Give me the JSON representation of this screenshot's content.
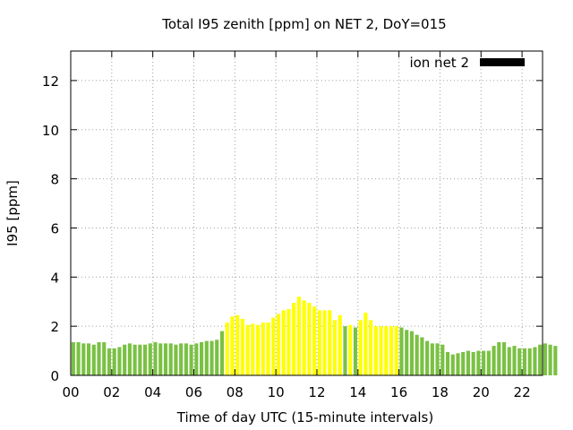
{
  "chart_data": {
    "type": "bar",
    "title": "Total I95 zenith [ppm] on NET 2, DoY=015",
    "xlabel": "Time of day UTC (15-minute intervals)",
    "ylabel": "I95 [ppm]",
    "xlim": [
      0,
      23
    ],
    "ylim": [
      0,
      13.2
    ],
    "x_bin_width_hours": 0.25,
    "grid": true,
    "grid_style": "dotted",
    "legend_position": "top-right",
    "legend": [
      {
        "label": "ion net 2",
        "color": "#000000"
      }
    ],
    "x_ticks": [
      0,
      2,
      4,
      6,
      8,
      10,
      12,
      14,
      16,
      18,
      20,
      22
    ],
    "x_tick_labels": [
      "00",
      "02",
      "04",
      "06",
      "08",
      "10",
      "12",
      "14",
      "16",
      "18",
      "20",
      "22"
    ],
    "y_ticks": [
      0,
      2,
      4,
      6,
      8,
      10,
      12
    ],
    "y_tick_labels": [
      "0",
      "2",
      "4",
      "6",
      "8",
      "10",
      "12"
    ],
    "colors": {
      "green": "#7ac143",
      "yellow": "#ffff00",
      "axis": "#000000",
      "grid": "#a0a0a0"
    },
    "series": [
      {
        "start_hour": 0,
        "values": [
          1.35,
          1.35,
          1.3,
          1.3,
          1.25,
          1.35,
          1.35,
          1.1,
          1.1,
          1.15,
          1.25,
          1.3,
          1.25,
          1.25,
          1.25,
          1.3,
          1.35,
          1.3,
          1.3,
          1.3,
          1.25,
          1.3,
          1.3,
          1.25,
          1.3,
          1.35,
          1.4,
          1.4,
          1.45,
          1.8,
          2.15,
          2.4,
          2.45,
          2.3,
          2.05,
          2.1,
          2.05,
          2.15,
          2.15,
          2.35,
          2.5,
          2.65,
          2.7,
          2.95,
          3.2,
          3.05,
          2.95,
          2.8,
          2.65,
          2.65,
          2.65,
          2.25,
          2.45,
          2.0,
          2.05,
          1.95,
          2.25,
          2.55,
          2.25,
          2.0,
          2.0,
          2.0,
          2.0,
          2.0,
          1.95,
          1.85,
          1.8,
          1.65,
          1.55,
          1.4,
          1.3,
          1.3,
          1.25,
          0.95,
          0.85,
          0.9,
          0.95,
          1.0,
          0.95,
          1.0,
          1.0,
          1.0,
          1.2,
          1.35,
          1.35,
          1.15,
          1.2,
          1.1,
          1.1,
          1.1,
          1.15,
          1.25,
          1.3,
          1.25,
          1.2
        ],
        "colors": [
          "green",
          "green",
          "green",
          "green",
          "green",
          "green",
          "green",
          "green",
          "green",
          "green",
          "green",
          "green",
          "green",
          "green",
          "green",
          "green",
          "green",
          "green",
          "green",
          "green",
          "green",
          "green",
          "green",
          "green",
          "green",
          "green",
          "green",
          "green",
          "green",
          "green",
          "yellow",
          "yellow",
          "yellow",
          "yellow",
          "yellow",
          "yellow",
          "yellow",
          "yellow",
          "yellow",
          "yellow",
          "yellow",
          "yellow",
          "yellow",
          "yellow",
          "yellow",
          "yellow",
          "yellow",
          "yellow",
          "yellow",
          "yellow",
          "yellow",
          "yellow",
          "yellow",
          "green",
          "yellow",
          "green",
          "yellow",
          "yellow",
          "yellow",
          "yellow",
          "yellow",
          "yellow",
          "yellow",
          "yellow",
          "green",
          "green",
          "green",
          "green",
          "green",
          "green",
          "green",
          "green",
          "green",
          "green",
          "green",
          "green",
          "green",
          "green",
          "green",
          "green",
          "green",
          "green",
          "green",
          "green",
          "green",
          "green",
          "green",
          "green",
          "green",
          "green",
          "green",
          "green",
          "green",
          "green",
          "green"
        ]
      }
    ]
  }
}
